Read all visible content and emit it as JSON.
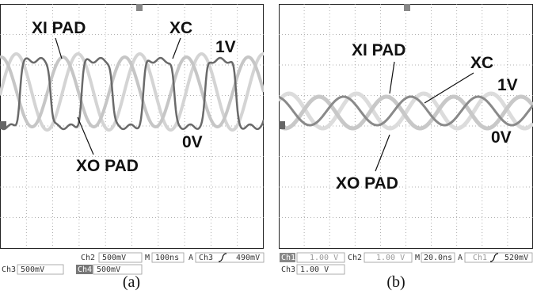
{
  "panels": [
    {
      "labels": {
        "xi_pad": "XI PAD",
        "xc": "XC",
        "one_v": "1V",
        "xo_pad": "XO PAD",
        "zero_v": "0V"
      },
      "status": {
        "ch2": "Ch2",
        "ch2_scale": "500mV",
        "m": "M",
        "timebase": "100ns",
        "a": "A",
        "trig_ch": "Ch3",
        "trig_level": "490mV",
        "ch3": "Ch3",
        "ch3_scale": "500mV",
        "ch4": "Ch4",
        "ch4_scale": "500mV"
      },
      "caption": "(a)"
    },
    {
      "labels": {
        "xi_pad": "XI PAD",
        "xc": "XC",
        "one_v": "1V",
        "xo_pad": "XO PAD",
        "zero_v": "0V"
      },
      "status": {
        "ch1": "Ch1",
        "ch1_scale": "1.00 V",
        "ch2": "Ch2",
        "ch2_scale": "1.00 V",
        "m": "M",
        "timebase": "20.0ns",
        "a": "A",
        "trig_ch": "Ch1",
        "trig_level": "520mV",
        "ch3": "Ch3",
        "ch3_scale": "1.00 V"
      },
      "caption": "(b)"
    }
  ]
}
